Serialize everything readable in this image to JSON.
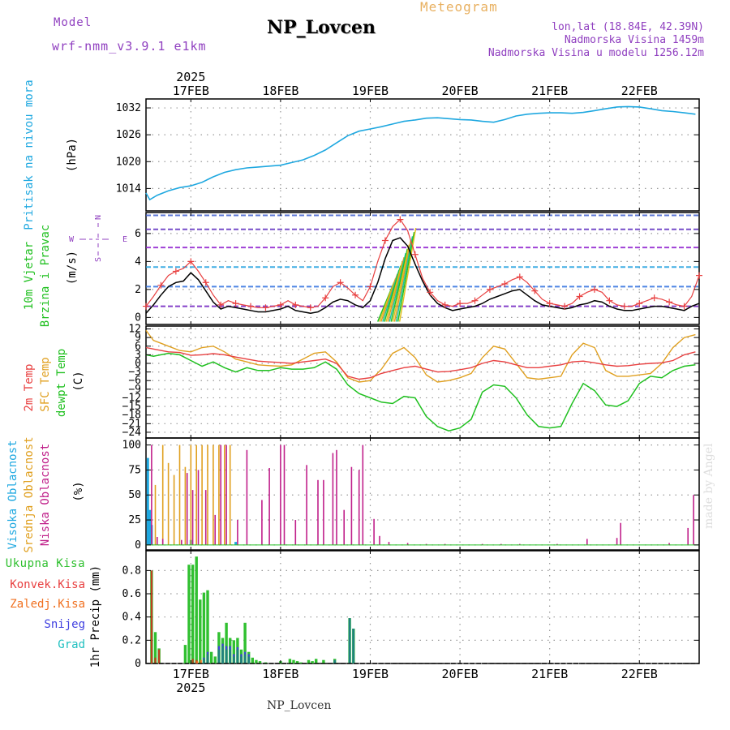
{
  "header": {
    "model_label": "Model",
    "model_name": "wrf-nmm_v3.9.1 e1km",
    "title": "NP_Lovcen",
    "meteogram": "Meteogram",
    "lonlat": "lon,lat (18.84E, 42.39N)",
    "altitude": "Nadmorska Visina 1459m",
    "model_altitude": "Nadmorska Visina u modelu 1256.12m",
    "watermark": "made by Angel",
    "footer": "NP_Lovcen"
  },
  "colors": {
    "pressure": "#1fa8e0",
    "wind_label": "#20c020",
    "temp2m": "#e84040",
    "sfc": "#e0a020",
    "dew": "#20c020",
    "high_cloud": "#1fa8e0",
    "mid_cloud": "#e0a020",
    "low_cloud": "#c0208a",
    "total_precip": "#30c030",
    "conv_precip": "#e84040",
    "frozen": "#f07020",
    "snow": "#4040e0",
    "graupel": "#20c0c0",
    "purple": "#9040c0"
  },
  "time_axis": {
    "year": "2025",
    "ticks": [
      "17FEB",
      "18FEB",
      "19FEB",
      "20FEB",
      "21FEB",
      "22FEB"
    ],
    "tick_hours": [
      12,
      36,
      60,
      84,
      108,
      132
    ]
  },
  "chart_data": [
    {
      "type": "line",
      "name": "pressure",
      "ylabel": "Pritisak na nivou mora",
      "unit": "(hPa)",
      "yticks": [
        1014,
        1020,
        1026,
        1032
      ],
      "ylim": [
        1009,
        1034
      ],
      "x": [
        0,
        1,
        3,
        6,
        9,
        12,
        15,
        18,
        21,
        24,
        27,
        30,
        33,
        36,
        39,
        42,
        45,
        48,
        51,
        54,
        57,
        60,
        63,
        66,
        69,
        72,
        75,
        78,
        81,
        84,
        87,
        90,
        93,
        96,
        99,
        102,
        105,
        108,
        111,
        114,
        117,
        120,
        123,
        126,
        129,
        132,
        135,
        138,
        141,
        144,
        147
      ],
      "values": [
        1013,
        1011.5,
        1012.5,
        1013.5,
        1014.2,
        1014.6,
        1015.4,
        1016.6,
        1017.6,
        1018.2,
        1018.6,
        1018.8,
        1019.0,
        1019.2,
        1019.8,
        1020.4,
        1021.4,
        1022.6,
        1024.2,
        1025.8,
        1026.8,
        1027.3,
        1027.8,
        1028.4,
        1029.0,
        1029.3,
        1029.7,
        1029.8,
        1029.6,
        1029.4,
        1029.3,
        1029.0,
        1028.8,
        1029.4,
        1030.2,
        1030.6,
        1030.8,
        1030.9,
        1030.9,
        1030.8,
        1031.0,
        1031.4,
        1031.8,
        1032.2,
        1032.3,
        1032.2,
        1031.8,
        1031.4,
        1031.2,
        1030.9,
        1030.6
      ]
    },
    {
      "type": "line",
      "name": "wind",
      "ylabel": "10m Vjetar",
      "ylabel2": "Brzina i Pravac",
      "unit": "(m/s)",
      "compass_n": "N",
      "compass_w": "W",
      "compass_e": "E",
      "compass_s": "S",
      "yticks": [
        0,
        2,
        4,
        6
      ],
      "ylim": [
        -0.5,
        7.5
      ],
      "x": [
        0,
        2,
        4,
        6,
        8,
        10,
        12,
        14,
        16,
        18,
        20,
        22,
        24,
        26,
        28,
        30,
        32,
        34,
        36,
        38,
        40,
        42,
        44,
        46,
        48,
        50,
        52,
        54,
        56,
        58,
        60,
        62,
        64,
        66,
        68,
        70,
        72,
        74,
        76,
        78,
        80,
        82,
        84,
        86,
        88,
        90,
        92,
        94,
        96,
        98,
        100,
        102,
        104,
        106,
        108,
        110,
        112,
        114,
        116,
        118,
        120,
        122,
        124,
        126,
        128,
        130,
        132,
        134,
        136,
        138,
        140,
        142,
        144,
        146,
        148
      ],
      "values": [
        0.3,
        0.9,
        1.6,
        2.2,
        2.5,
        2.6,
        3.2,
        2.7,
        1.9,
        1.1,
        0.6,
        0.8,
        0.7,
        0.6,
        0.5,
        0.4,
        0.4,
        0.5,
        0.6,
        0.8,
        0.5,
        0.4,
        0.3,
        0.4,
        0.7,
        1.1,
        1.3,
        1.2,
        0.9,
        0.7,
        1.2,
        2.5,
        4.2,
        5.5,
        5.7,
        5.1,
        3.8,
        2.6,
        1.6,
        1.0,
        0.7,
        0.5,
        0.6,
        0.7,
        0.8,
        1.0,
        1.3,
        1.5,
        1.7,
        1.9,
        2.0,
        1.6,
        1.2,
        0.9,
        0.8,
        0.7,
        0.6,
        0.7,
        0.9,
        1.0,
        1.2,
        1.1,
        0.8,
        0.6,
        0.5,
        0.5,
        0.6,
        0.7,
        0.8,
        0.8,
        0.7,
        0.6,
        0.5,
        0.8,
        1.0
      ],
      "gust": [
        0.8,
        1.5,
        2.3,
        3.0,
        3.3,
        3.5,
        4.0,
        3.3,
        2.5,
        1.6,
        0.9,
        1.2,
        1.0,
        0.9,
        0.8,
        0.7,
        0.7,
        0.8,
        0.9,
        1.2,
        0.9,
        0.8,
        0.7,
        0.8,
        1.4,
        2.2,
        2.5,
        2.1,
        1.6,
        1.2,
        2.2,
        4.0,
        5.5,
        6.5,
        7.0,
        6.2,
        4.5,
        2.8,
        1.8,
        1.2,
        0.9,
        0.8,
        1.0,
        1.0,
        1.2,
        1.6,
        2.0,
        2.2,
        2.4,
        2.7,
        2.9,
        2.5,
        1.9,
        1.3,
        1.0,
        0.9,
        0.8,
        1.0,
        1.5,
        1.8,
        2.0,
        1.8,
        1.2,
        0.9,
        0.8,
        0.8,
        1.0,
        1.2,
        1.4,
        1.3,
        1.1,
        0.9,
        0.8,
        1.5,
        3.0
      ]
    },
    {
      "type": "line",
      "name": "temperature",
      "ylabel_t2": "2m Temp",
      "ylabel_sfc": "SFC Temp",
      "ylabel_dew": "dewpt Temp",
      "unit": "(C)",
      "yticks": [
        12,
        9,
        6,
        3,
        0,
        -3,
        -6,
        -9,
        -12,
        -15,
        -18,
        -21,
        -24
      ],
      "ylim": [
        -26,
        13
      ],
      "x": [
        0,
        2,
        4,
        6,
        9,
        12,
        15,
        18,
        21,
        24,
        27,
        30,
        33,
        36,
        39,
        42,
        45,
        48,
        51,
        54,
        57,
        60,
        63,
        66,
        69,
        72,
        75,
        78,
        81,
        84,
        87,
        90,
        93,
        96,
        99,
        102,
        105,
        108,
        111,
        114,
        117,
        120,
        123,
        126,
        129,
        132,
        135,
        138,
        141,
        144,
        147
      ],
      "t2": [
        5.5,
        5.0,
        4.5,
        4.0,
        3.8,
        2.8,
        3.0,
        3.4,
        3.0,
        2.2,
        1.5,
        0.8,
        0.5,
        0.3,
        0.0,
        0.5,
        1.0,
        1.5,
        0.0,
        -4.5,
        -5.5,
        -5.0,
        -3.5,
        -2.5,
        -1.5,
        -1.0,
        -2.0,
        -3.0,
        -2.8,
        -2.2,
        -1.5,
        0.0,
        1.0,
        0.5,
        -0.5,
        -1.5,
        -1.5,
        -1.0,
        -0.5,
        0.5,
        0.8,
        0.2,
        -0.5,
        -1.0,
        -0.8,
        -0.3,
        0.0,
        0.2,
        1.0,
        3.0,
        4.0
      ],
      "sfc": [
        11.5,
        8.0,
        7.0,
        6.0,
        4.5,
        4.0,
        5.5,
        6.0,
        4.0,
        1.5,
        0.5,
        -0.5,
        -0.8,
        -1.0,
        -0.5,
        1.5,
        3.5,
        4.0,
        0.5,
        -5.0,
        -6.5,
        -6.0,
        -2.0,
        3.5,
        5.5,
        2.0,
        -4.0,
        -6.5,
        -6.0,
        -5.0,
        -3.5,
        2.0,
        6.0,
        5.0,
        0.0,
        -5.0,
        -5.5,
        -5.0,
        -4.5,
        3.0,
        7.0,
        5.5,
        -2.5,
        -4.5,
        -4.5,
        -4.0,
        -3.5,
        0.0,
        5.5,
        9.0,
        10.0
      ],
      "dew": [
        3.0,
        2.5,
        3.0,
        3.5,
        3.0,
        1.0,
        -1.0,
        0.5,
        -1.5,
        -3.0,
        -1.5,
        -2.5,
        -2.5,
        -1.5,
        -2.0,
        -2.0,
        -1.5,
        0.5,
        -2.0,
        -7.5,
        -10.5,
        -12.0,
        -13.5,
        -14.0,
        -11.5,
        -12.0,
        -18.5,
        -22.0,
        -23.5,
        -22.5,
        -19.5,
        -10.0,
        -7.5,
        -8.0,
        -12.0,
        -18.0,
        -22.0,
        -22.5,
        -22.0,
        -14.0,
        -7.0,
        -9.5,
        -14.5,
        -15.0,
        -13.0,
        -7.0,
        -4.5,
        -5.0,
        -2.5,
        -1.0,
        -0.5
      ]
    },
    {
      "type": "bar",
      "name": "cloud",
      "ylabel_high": "Visoka Oblacnost",
      "ylabel_mid": "Srednja Oblacnost",
      "ylabel_low": "Niska Oblacnost",
      "unit": "(%)",
      "yticks": [
        0,
        25,
        50,
        75,
        100
      ],
      "ylim": [
        -5,
        107
      ],
      "high": [
        [
          0.5,
          87
        ],
        [
          1.0,
          35
        ],
        [
          1.5,
          20
        ],
        [
          12,
          5
        ],
        [
          24,
          3
        ]
      ],
      "mid": [
        [
          2.5,
          60
        ],
        [
          4.5,
          100
        ],
        [
          6,
          82
        ],
        [
          7.5,
          70
        ],
        [
          9,
          100
        ],
        [
          10.5,
          78
        ],
        [
          12,
          100
        ],
        [
          13.5,
          100
        ],
        [
          15,
          100
        ],
        [
          16.5,
          100
        ],
        [
          18,
          100
        ],
        [
          19.5,
          100
        ],
        [
          21,
          100
        ],
        [
          22.5,
          100
        ]
      ],
      "low": [
        [
          1.5,
          100
        ],
        [
          3,
          8
        ],
        [
          4.5,
          6
        ],
        [
          9.5,
          5
        ],
        [
          11,
          72
        ],
        [
          12.5,
          55
        ],
        [
          14,
          75
        ],
        [
          16,
          55
        ],
        [
          18.5,
          30
        ],
        [
          20,
          100
        ],
        [
          21.5,
          100
        ],
        [
          24.5,
          25
        ],
        [
          27,
          95
        ],
        [
          31,
          45
        ],
        [
          33,
          77
        ],
        [
          36,
          100
        ],
        [
          37,
          100
        ],
        [
          40,
          25
        ],
        [
          43,
          80
        ],
        [
          46,
          65
        ],
        [
          47.5,
          65
        ],
        [
          50,
          92
        ],
        [
          51,
          95
        ],
        [
          53,
          35
        ],
        [
          55,
          78
        ],
        [
          57,
          75
        ],
        [
          58,
          100
        ],
        [
          61,
          26
        ],
        [
          62.5,
          9
        ],
        [
          65,
          3
        ],
        [
          70,
          2
        ],
        [
          75,
          1
        ],
        [
          80,
          1
        ],
        [
          90,
          1
        ],
        [
          95,
          1
        ],
        [
          100,
          1
        ],
        [
          110,
          1
        ],
        [
          118,
          6
        ],
        [
          126,
          7
        ],
        [
          127,
          22
        ],
        [
          140,
          2
        ],
        [
          145,
          17
        ],
        [
          146.5,
          50
        ]
      ]
    },
    {
      "type": "bar",
      "name": "precipitation",
      "label_total": "Ukupna Kisa",
      "label_conv": "Konvek.Kisa",
      "label_frozen": "Zaledj.Kisa",
      "label_snow": "Snijeg",
      "label_graupel": "Grad",
      "ylabel": "1hr Precip (mm)",
      "yticks": [
        0,
        0.2,
        0.4,
        0.6,
        0.8
      ],
      "ylim": [
        0,
        0.97
      ],
      "total": [
        [
          1.5,
          0.8
        ],
        [
          2.5,
          0.27
        ],
        [
          3.5,
          0.13
        ],
        [
          10.5,
          0.16
        ],
        [
          11.5,
          0.85
        ],
        [
          12.5,
          0.85
        ],
        [
          13.5,
          0.92
        ],
        [
          14.5,
          0.55
        ],
        [
          15.5,
          0.61
        ],
        [
          16.5,
          0.63
        ],
        [
          17.5,
          0.1
        ],
        [
          18.5,
          0.06
        ],
        [
          19.5,
          0.27
        ],
        [
          20.5,
          0.22
        ],
        [
          21.5,
          0.35
        ],
        [
          22.5,
          0.22
        ],
        [
          23.5,
          0.2
        ],
        [
          24.5,
          0.22
        ],
        [
          25.5,
          0.12
        ],
        [
          26.5,
          0.35
        ],
        [
          27.5,
          0.1
        ],
        [
          28.5,
          0.05
        ],
        [
          29.5,
          0.03
        ],
        [
          30.5,
          0.02
        ],
        [
          32,
          0.01
        ],
        [
          36,
          0.02
        ],
        [
          38.5,
          0.04
        ],
        [
          39.5,
          0.03
        ],
        [
          40.5,
          0.02
        ],
        [
          41.5,
          0.01
        ],
        [
          43.5,
          0.03
        ],
        [
          44.5,
          0.02
        ],
        [
          45.5,
          0.04
        ],
        [
          47.5,
          0.03
        ],
        [
          50.5,
          0.04
        ],
        [
          54.5,
          0.39
        ],
        [
          55.5,
          0.3
        ]
      ],
      "conv": [
        [
          1.5,
          0.8
        ],
        [
          2.5,
          0.05
        ],
        [
          3.5,
          0.12
        ],
        [
          12.5,
          0.04
        ],
        [
          13.5,
          0.03
        ]
      ],
      "frozen": [
        [
          13.5,
          0.02
        ],
        [
          14.5,
          0.03
        ]
      ],
      "snow": [
        [
          15.5,
          0.05
        ],
        [
          16.5,
          0.1
        ],
        [
          19.5,
          0.15
        ],
        [
          20.5,
          0.17
        ],
        [
          21.5,
          0.15
        ],
        [
          22.5,
          0.15
        ],
        [
          23.5,
          0.08
        ],
        [
          24.5,
          0.14
        ],
        [
          25.5,
          0.08
        ],
        [
          26.5,
          0.1
        ],
        [
          27.5,
          0.08
        ]
      ],
      "graupel": [
        [
          15.5,
          0.04
        ],
        [
          16.5,
          0.08
        ],
        [
          19.5,
          0.12
        ],
        [
          20.5,
          0.15
        ],
        [
          21.5,
          0.12
        ],
        [
          22.5,
          0.12
        ],
        [
          23.5,
          0.06
        ],
        [
          24.5,
          0.12
        ],
        [
          25.5,
          0.06
        ],
        [
          26.5,
          0.08
        ],
        [
          27.5,
          0.06
        ],
        [
          50.5,
          0.03
        ],
        [
          54.5,
          0.39
        ],
        [
          55.5,
          0.3
        ]
      ]
    }
  ]
}
